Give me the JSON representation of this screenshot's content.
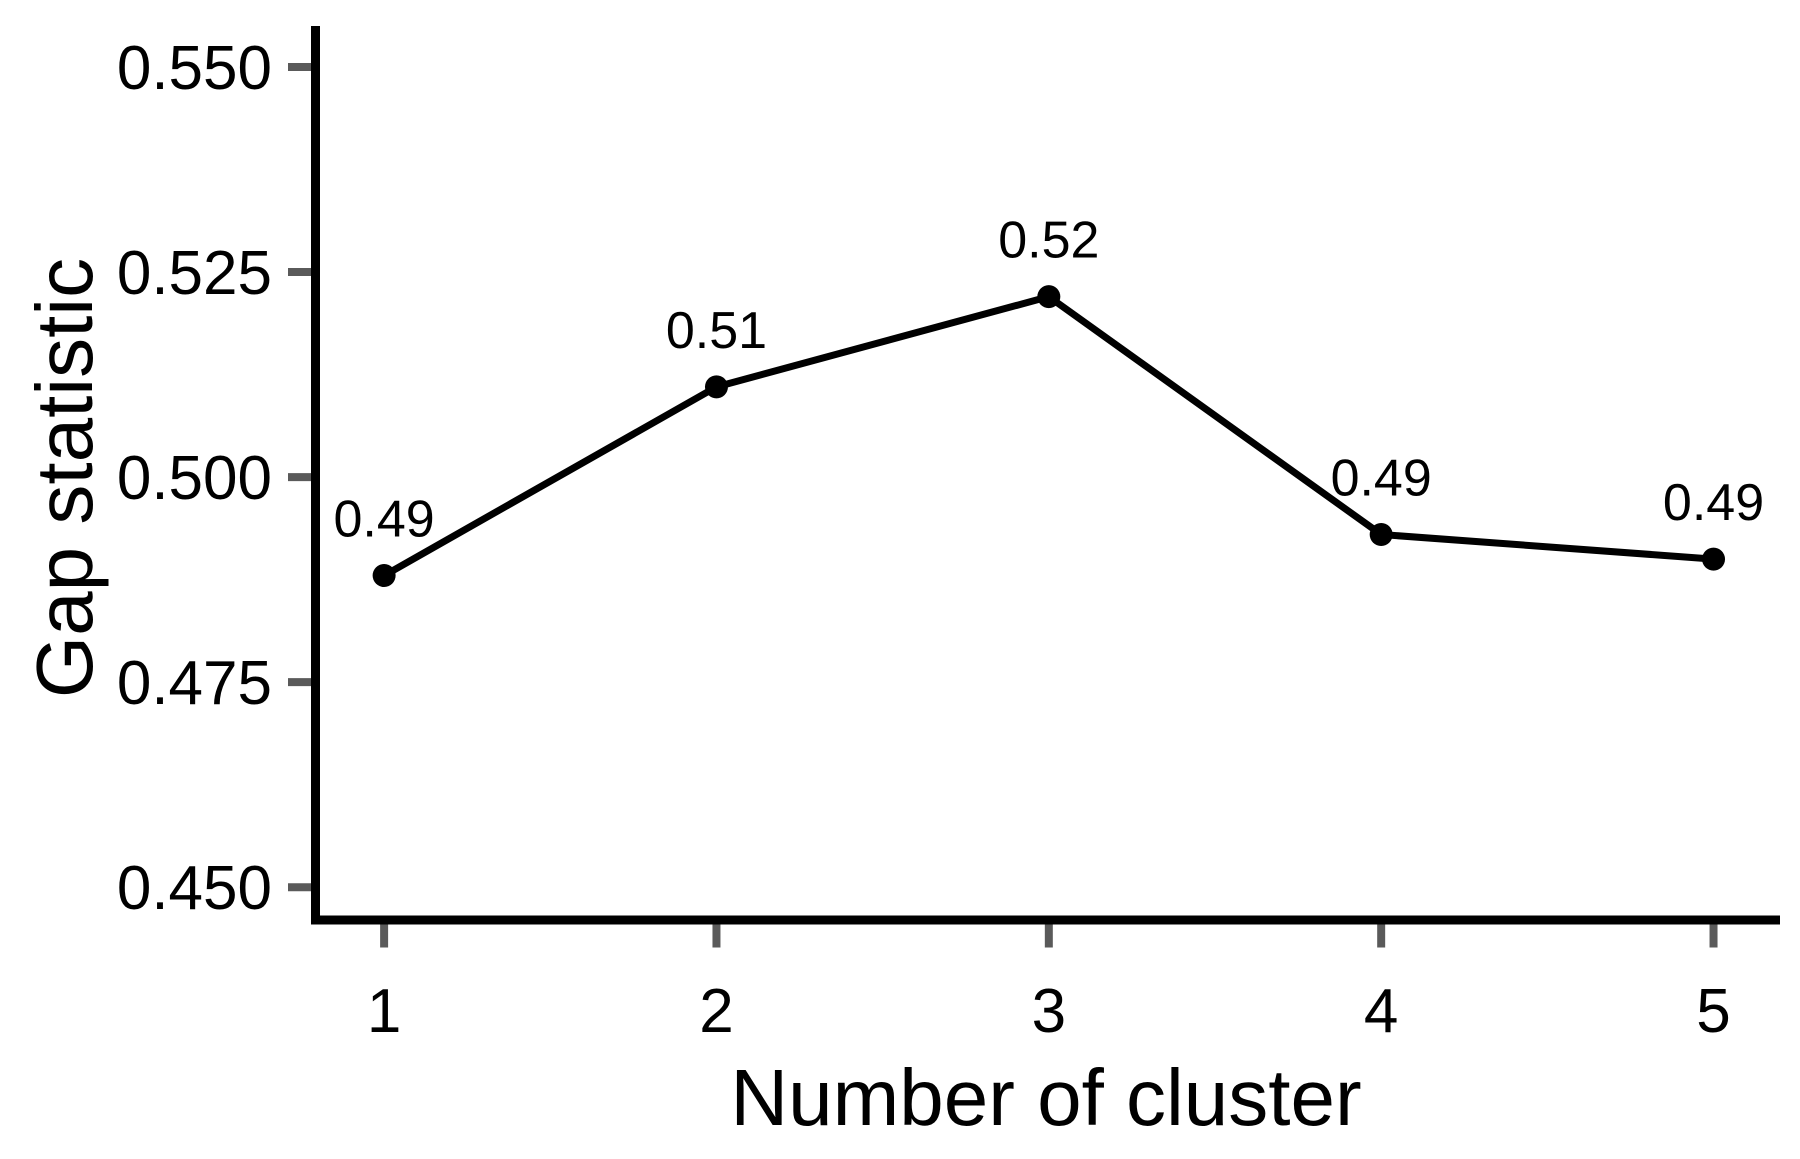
{
  "chart_data": {
    "type": "line",
    "title": "",
    "xlabel": "Number of cluster",
    "ylabel": "Gap statistic",
    "x": [
      1,
      2,
      3,
      4,
      5
    ],
    "series": [
      {
        "name": "Gap statistic",
        "values": [
          0.488,
          0.511,
          0.522,
          0.493,
          0.49
        ]
      }
    ],
    "point_labels": [
      "0.49",
      "0.51",
      "0.52",
      "0.49",
      "0.49"
    ],
    "xtick_labels": [
      "1",
      "2",
      "3",
      "4",
      "5"
    ],
    "ytick_values": [
      0.45,
      0.475,
      0.5,
      0.525,
      0.55
    ],
    "ytick_labels": [
      "0.450",
      "0.475",
      "0.500",
      "0.525",
      "0.550"
    ],
    "xlim": [
      0.78,
      5.2
    ],
    "ylim": [
      0.446,
      0.555
    ],
    "grid": false,
    "legend": "none",
    "marker": "filled-circle",
    "colors": {
      "line": "#000000",
      "point": "#000000",
      "tick": "#5a5a5a",
      "axis": "#000000",
      "text": "#000000",
      "background": "#ffffff"
    }
  }
}
